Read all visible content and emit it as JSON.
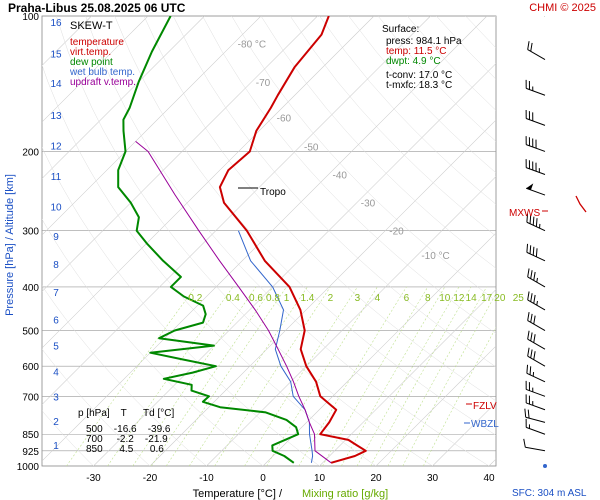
{
  "header": {
    "station_date": "Praha-Libus    25.08.2025 06 UTC",
    "copyright": "CHMI © 2025"
  },
  "legend": {
    "title": "SKEW-T",
    "items": [
      {
        "label": "temperature",
        "color": "#cc0000"
      },
      {
        "label": "virt.temp.",
        "color": "#cc0000"
      },
      {
        "label": "dew point",
        "color": "#008800"
      },
      {
        "label": "wet bulb temp.",
        "color": "#3366cc"
      },
      {
        "label": "updraft v.temp.",
        "color": "#990099"
      }
    ]
  },
  "surface": {
    "title": "Surface:",
    "lines": [
      {
        "text": "press: 984.1 hPa",
        "color": "#000000"
      },
      {
        "text": "temp: 11.5 °C",
        "color": "#cc0000"
      },
      {
        "text": "dwpt: 4.9 °C",
        "color": "#008800"
      },
      {
        "text": "",
        "color": "#000000"
      },
      {
        "text": "t-conv: 17.0 °C",
        "color": "#000000"
      },
      {
        "text": "t-mxfc: 18.3 °C",
        "color": "#000000"
      }
    ]
  },
  "table": {
    "header": "p [hPa]    T      Td [°C]",
    "rows": [
      "500    -16.6    -39.6",
      "700     -2.2    -21.9",
      "850      4.5      0.6"
    ]
  },
  "markers": {
    "tropo": "Tropo",
    "mxws": "MXWS",
    "fzlv": "FZLV",
    "wbzl": "WBZL"
  },
  "axes": {
    "ylabel": "Pressure [hPa]  /  Altitude [km]",
    "xlabel_temp": "Temperature [°C]  /",
    "xlabel_mix": "Mixing ratio [g/kg]",
    "sfc": "SFC: 304 m ASL"
  },
  "colors": {
    "temperature": "#cc0000",
    "dewpoint": "#008800",
    "wetbulb": "#3366cc",
    "updraft": "#990099",
    "mixing": "#99cc33",
    "isotherm_label": "#999999",
    "km": "#1a4fc4",
    "grid": "#aaaaaa"
  },
  "chart_data": {
    "type": "line",
    "title": "Praha-Libus 25.08.2025 06 UTC",
    "xlabel": "Temperature [°C] / Mixing ratio [g/kg]",
    "ylabel": "Pressure [hPa] / Altitude [km]",
    "pressure_ticks": [
      100,
      200,
      300,
      400,
      500,
      600,
      700,
      850,
      925,
      1000
    ],
    "pressure_labels": [
      "100",
      "200",
      "300",
      "400",
      "500",
      "600",
      "700",
      "850",
      "925",
      "1000"
    ],
    "temp_ticks": [
      -30,
      -20,
      -10,
      0,
      10,
      20,
      30,
      40
    ],
    "temp_labels": [
      "-30",
      "-20",
      "-10",
      "0",
      "10",
      "20",
      "30",
      "40"
    ],
    "altitude_km": [
      {
        "km": 1,
        "p": 898
      },
      {
        "km": 2,
        "p": 795
      },
      {
        "km": 3,
        "p": 701
      },
      {
        "km": 4,
        "p": 616
      },
      {
        "km": 5,
        "p": 540
      },
      {
        "km": 6,
        "p": 472
      },
      {
        "km": 7,
        "p": 411
      },
      {
        "km": 8,
        "p": 356
      },
      {
        "km": 9,
        "p": 308
      },
      {
        "km": 10,
        "p": 265
      },
      {
        "km": 11,
        "p": 227
      },
      {
        "km": 12,
        "p": 194
      },
      {
        "km": 13,
        "p": 166
      },
      {
        "km": 14,
        "p": 141
      },
      {
        "km": 15,
        "p": 121
      },
      {
        "km": 16,
        "p": 103
      }
    ],
    "isotherm_labels": [
      {
        "t": -80,
        "text": "-80 °C"
      },
      {
        "t": -70,
        "text": "-70"
      },
      {
        "t": -60,
        "text": "-60"
      },
      {
        "t": -50,
        "text": "-50"
      },
      {
        "t": -40,
        "text": "-40"
      },
      {
        "t": -30,
        "text": "-30"
      },
      {
        "t": -20,
        "text": "-20"
      },
      {
        "t": -10,
        "text": "-10 °C"
      }
    ],
    "mixing_ratio_labels": [
      "0.2",
      "0.4",
      "0.6",
      "0.8",
      "1",
      "1.4",
      "2",
      "3",
      "4",
      "6",
      "8",
      "10",
      "12",
      "14",
      "17",
      "20",
      "25"
    ],
    "series": [
      {
        "name": "temperature",
        "points": [
          [
            984,
            11.5
          ],
          [
            950,
            14.5
          ],
          [
            925,
            15.5
          ],
          [
            900,
            13.0
          ],
          [
            875,
            10.5
          ],
          [
            850,
            4.5
          ],
          [
            800,
            4.0
          ],
          [
            750,
            3.0
          ],
          [
            700,
            -2.2
          ],
          [
            650,
            -5.5
          ],
          [
            600,
            -10.0
          ],
          [
            550,
            -14.0
          ],
          [
            500,
            -16.6
          ],
          [
            450,
            -21.0
          ],
          [
            400,
            -27.0
          ],
          [
            350,
            -36.0
          ],
          [
            300,
            -44.5
          ],
          [
            260,
            -53.5
          ],
          [
            240,
            -57.0
          ],
          [
            220,
            -58.5
          ],
          [
            200,
            -58.0
          ],
          [
            180,
            -60.5
          ],
          [
            160,
            -62.0
          ],
          [
            150,
            -63.0
          ],
          [
            130,
            -65.0
          ],
          [
            110,
            -66.0
          ],
          [
            100,
            -68.0
          ]
        ]
      },
      {
        "name": "dew point",
        "points": [
          [
            984,
            4.9
          ],
          [
            950,
            2.0
          ],
          [
            925,
            -1.0
          ],
          [
            900,
            -2.0
          ],
          [
            850,
            0.6
          ],
          [
            820,
            -1.0
          ],
          [
            790,
            -4.0
          ],
          [
            760,
            -9.0
          ],
          [
            740,
            -18.0
          ],
          [
            720,
            -22.0
          ],
          [
            700,
            -21.9
          ],
          [
            680,
            -26.0
          ],
          [
            660,
            -27.0
          ],
          [
            640,
            -33.0
          ],
          [
            620,
            -29.0
          ],
          [
            600,
            -26.0
          ],
          [
            580,
            -33.0
          ],
          [
            560,
            -40.0
          ],
          [
            540,
            -30.0
          ],
          [
            520,
            -41.0
          ],
          [
            500,
            -39.6
          ],
          [
            480,
            -36.0
          ],
          [
            460,
            -37.0
          ],
          [
            440,
            -39.0
          ],
          [
            420,
            -44.0
          ],
          [
            400,
            -48.0
          ],
          [
            380,
            -48.0
          ],
          [
            350,
            -54.0
          ],
          [
            320,
            -60.0
          ],
          [
            300,
            -64.0
          ],
          [
            280,
            -66.0
          ],
          [
            260,
            -70.0
          ],
          [
            240,
            -75.0
          ],
          [
            220,
            -78.0
          ],
          [
            200,
            -80.0
          ],
          [
            180,
            -84.0
          ],
          [
            170,
            -86.0
          ],
          [
            160,
            -87.0
          ],
          [
            140,
            -90.0
          ],
          [
            120,
            -93.0
          ],
          [
            100,
            -96.0
          ]
        ]
      },
      {
        "name": "wet bulb temp.",
        "points": [
          [
            984,
            8.0
          ],
          [
            950,
            7.0
          ],
          [
            925,
            6.0
          ],
          [
            850,
            2.6
          ],
          [
            800,
            0.5
          ],
          [
            750,
            -2.5
          ],
          [
            700,
            -7.0
          ],
          [
            650,
            -10.0
          ],
          [
            600,
            -14.5
          ],
          [
            550,
            -18.5
          ],
          [
            500,
            -21.0
          ],
          [
            450,
            -24.0
          ],
          [
            400,
            -30.0
          ],
          [
            350,
            -38.5
          ],
          [
            300,
            -46.0
          ]
        ]
      },
      {
        "name": "updraft v.temp.",
        "points": [
          [
            984,
            11.5
          ],
          [
            925,
            6.5
          ],
          [
            850,
            3.5
          ],
          [
            800,
            0.5
          ],
          [
            750,
            -2.5
          ],
          [
            700,
            -6.0
          ],
          [
            650,
            -9.5
          ],
          [
            600,
            -13.5
          ],
          [
            550,
            -18.0
          ],
          [
            500,
            -23.0
          ],
          [
            450,
            -29.0
          ],
          [
            400,
            -36.0
          ],
          [
            350,
            -44.0
          ],
          [
            300,
            -53.0
          ],
          [
            250,
            -63.5
          ],
          [
            200,
            -76.0
          ],
          [
            190,
            -80.0
          ]
        ]
      }
    ],
    "winds": [
      {
        "p": 1000,
        "dir": 0,
        "kt": 0
      },
      {
        "p": 925,
        "dir": 280,
        "kt": 10
      },
      {
        "p": 850,
        "dir": 290,
        "kt": 15
      },
      {
        "p": 800,
        "dir": 285,
        "kt": 20
      },
      {
        "p": 750,
        "dir": 290,
        "kt": 25
      },
      {
        "p": 700,
        "dir": 290,
        "kt": 25
      },
      {
        "p": 650,
        "dir": 295,
        "kt": 25
      },
      {
        "p": 600,
        "dir": 300,
        "kt": 30
      },
      {
        "p": 550,
        "dir": 300,
        "kt": 30
      },
      {
        "p": 500,
        "dir": 300,
        "kt": 30
      },
      {
        "p": 450,
        "dir": 300,
        "kt": 35
      },
      {
        "p": 400,
        "dir": 300,
        "kt": 35
      },
      {
        "p": 350,
        "dir": 295,
        "kt": 40
      },
      {
        "p": 300,
        "dir": 295,
        "kt": 45
      },
      {
        "p": 250,
        "dir": 290,
        "kt": 50
      },
      {
        "p": 225,
        "dir": 290,
        "kt": 45
      },
      {
        "p": 200,
        "dir": 290,
        "kt": 40
      },
      {
        "p": 175,
        "dir": 290,
        "kt": 30
      },
      {
        "p": 150,
        "dir": 290,
        "kt": 25
      },
      {
        "p": 125,
        "dir": 300,
        "kt": 20
      },
      {
        "p": 100,
        "dir": 310,
        "kt": 20
      }
    ]
  }
}
